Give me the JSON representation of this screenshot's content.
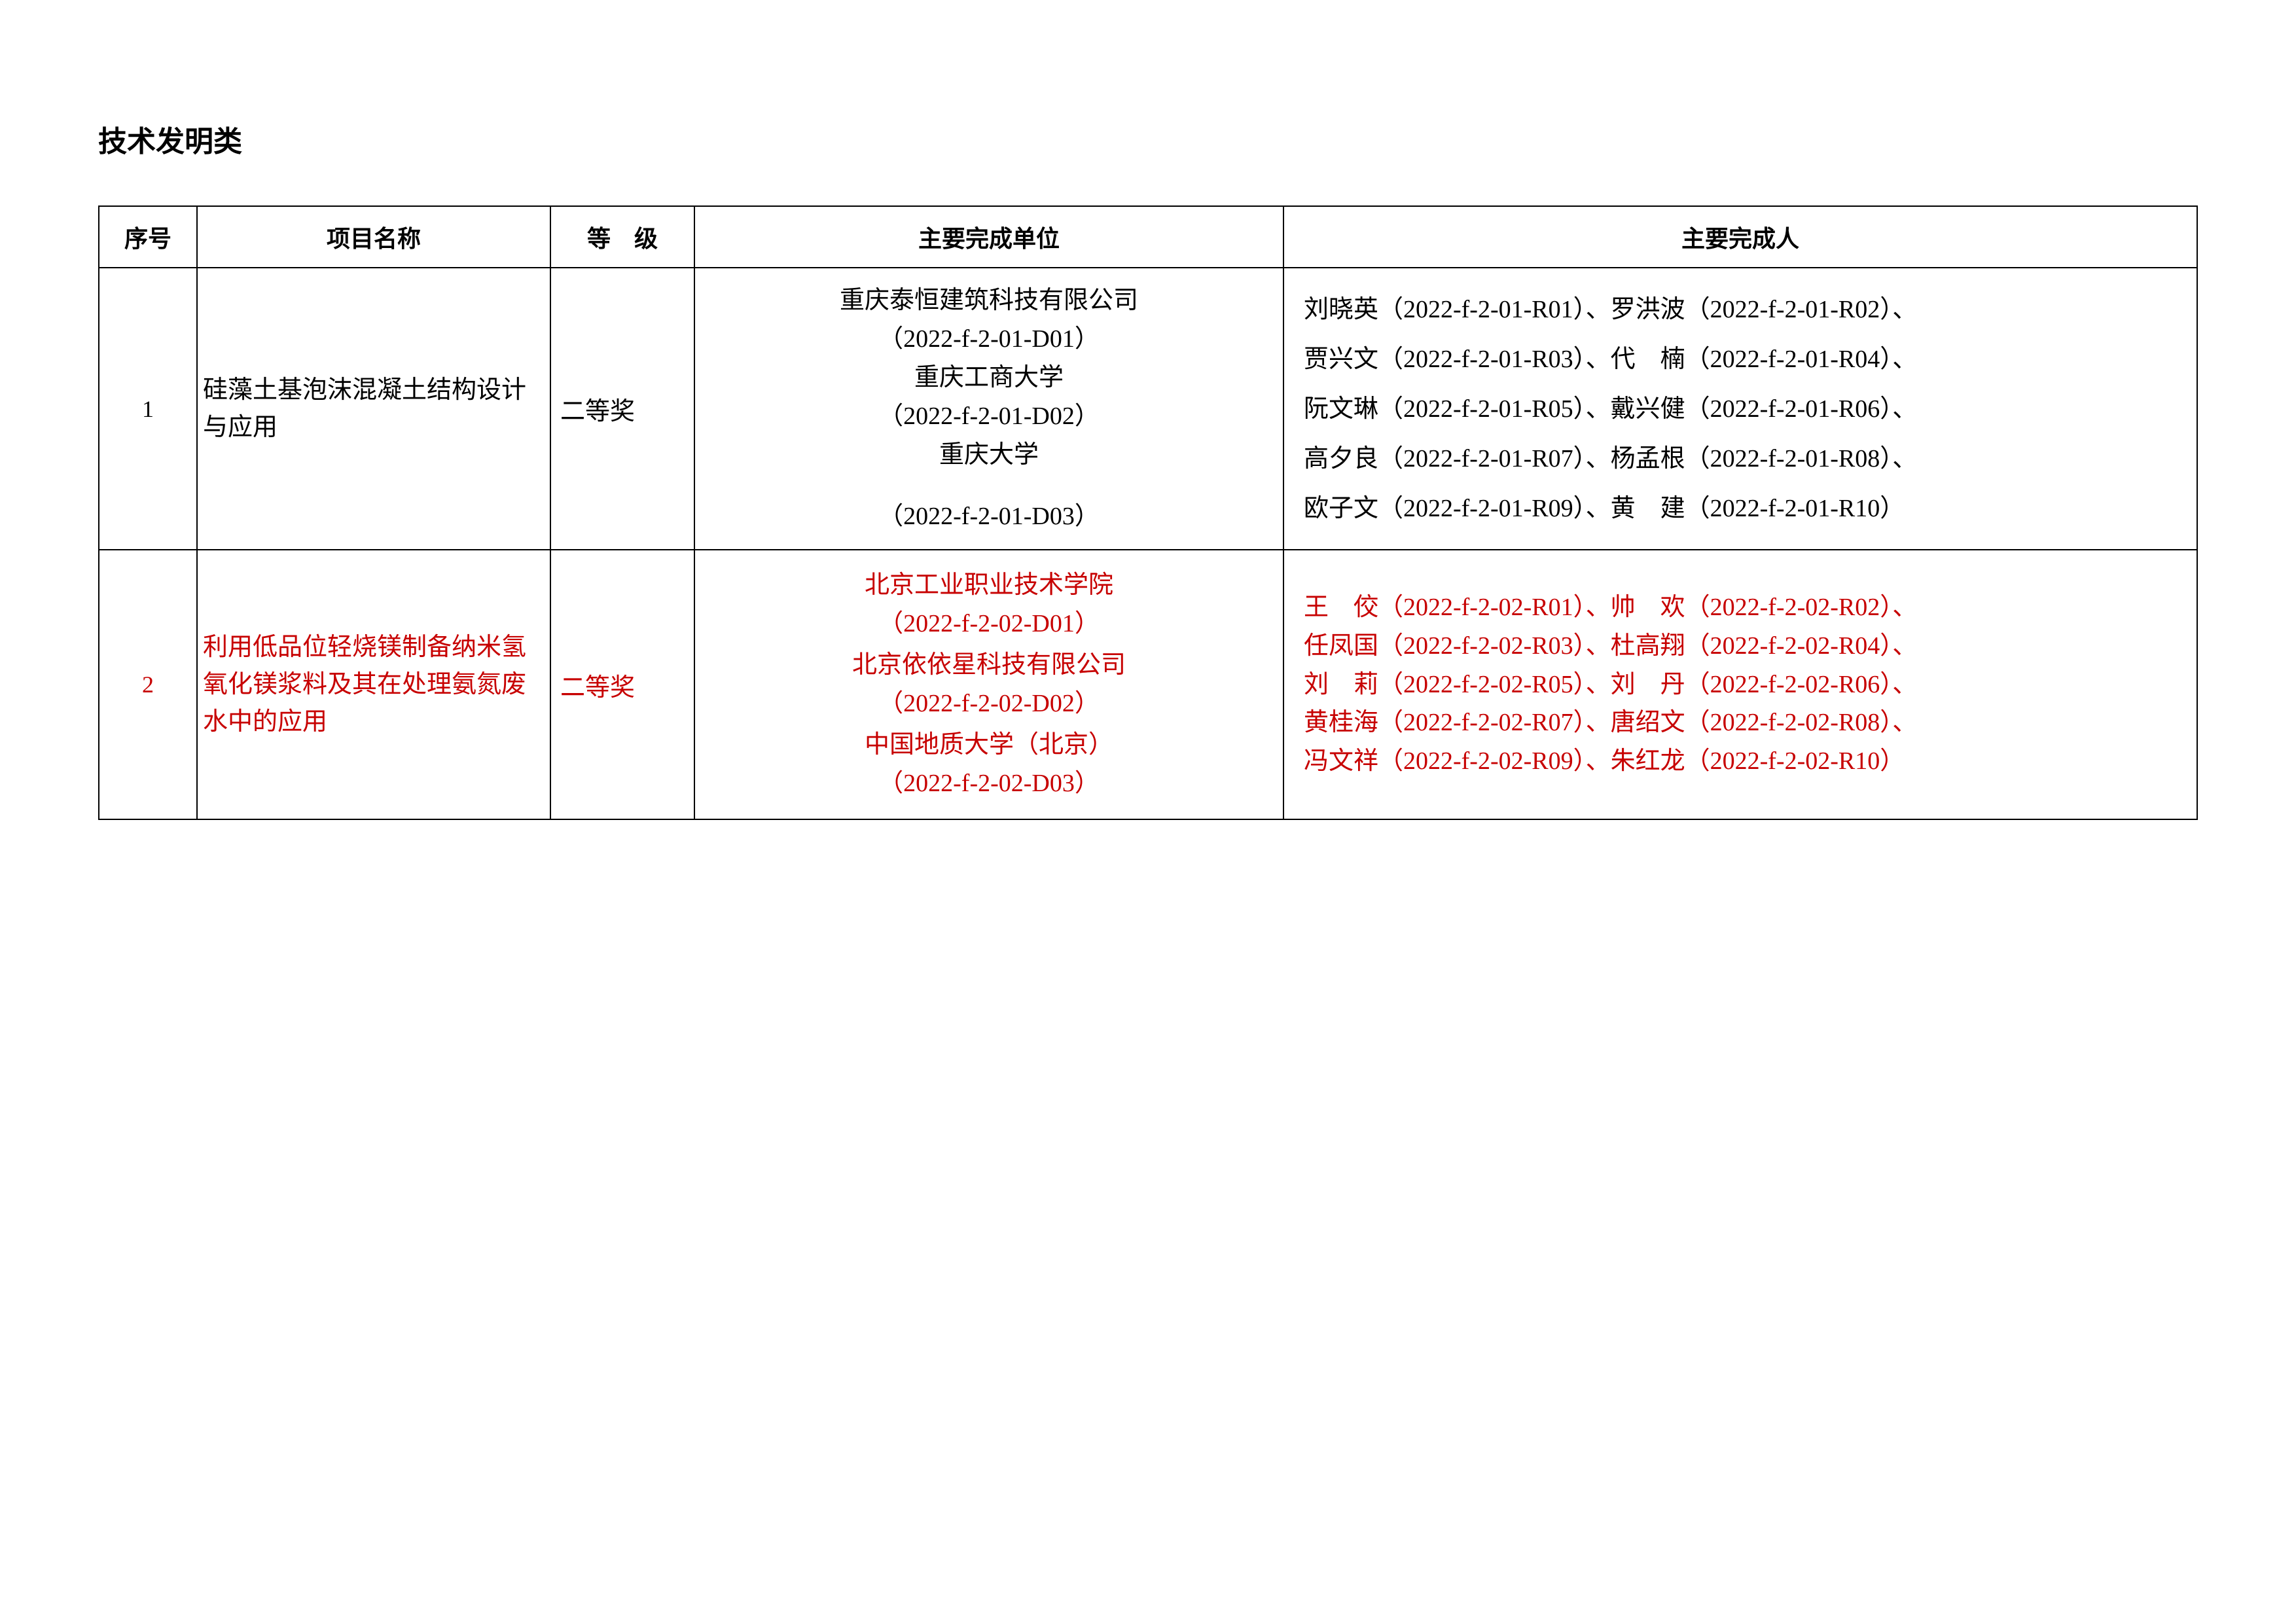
{
  "section_title": "技术发明类",
  "columns": {
    "seq": "序号",
    "name": "项目名称",
    "level": "等　级",
    "unit": "主要完成单位",
    "people": "主要完成人"
  },
  "rows": [
    {
      "seq": "1",
      "color": "#000000",
      "name": "硅藻土基泡沫混凝土结构设计与应用",
      "level": "二等奖",
      "units": [
        {
          "name": "重庆泰恒建筑科技有限公司",
          "code": "（2022-f-2-01-D01）"
        },
        {
          "name": "重庆工商大学",
          "code": "（2022-f-2-01-D02）"
        },
        {
          "name": "重庆大学",
          "code": "（2022-f-2-01-D03）",
          "gap": true
        }
      ],
      "people_lines": [
        "刘晓英（2022-f-2-01-R01）、罗洪波（2022-f-2-01-R02）、",
        "贾兴文（2022-f-2-01-R03）、代　楠（2022-f-2-01-R04）、",
        "阮文琳（2022-f-2-01-R05）、戴兴健（2022-f-2-01-R06）、",
        "高夕良（2022-f-2-01-R07）、杨孟根（2022-f-2-01-R08）、",
        "欧子文（2022-f-2-01-R09）、黄　建（2022-f-2-01-R10）"
      ],
      "people_line_height": "2.0"
    },
    {
      "seq": "2",
      "color": "#c70000",
      "name": "利用低品位轻烧镁制备纳米氢氧化镁浆料及其在处理氨氮废水中的应用",
      "level": "二等奖",
      "units": [
        {
          "name": "北京工业职业技术学院",
          "code": "（2022-f-2-02-D01）"
        },
        {
          "name": "北京依依星科技有限公司",
          "code": "（2022-f-2-02-D02）"
        },
        {
          "name": "中国地质大学（北京）",
          "code": "（2022-f-2-02-D03）"
        }
      ],
      "people_lines": [
        "王　佼（2022-f-2-02-R01）、帅　欢（2022-f-2-02-R02）、",
        "任凤国（2022-f-2-02-R03）、杜高翔（2022-f-2-02-R04）、",
        "刘　莉（2022-f-2-02-R05）、刘　丹（2022-f-2-02-R06）、",
        "黄桂海（2022-f-2-02-R07）、唐绍文（2022-f-2-02-R08）、",
        "冯文祥（2022-f-2-02-R09）、朱红龙（2022-f-2-02-R10）"
      ],
      "people_line_height": "1.55"
    }
  ]
}
